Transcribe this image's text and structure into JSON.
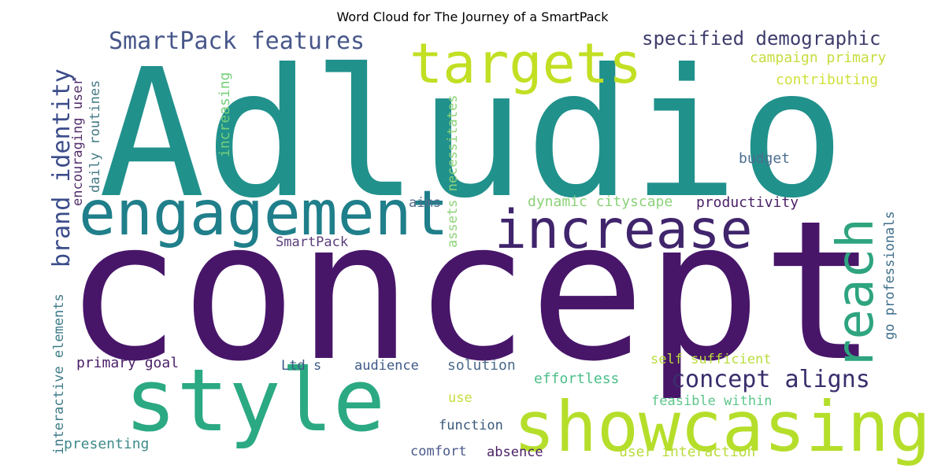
{
  "chart_data": {
    "type": "wordcloud",
    "title": "Word Cloud for The Journey of a SmartPack",
    "colormap": "viridis",
    "background": "#ffffff",
    "words": [
      {
        "text": "Adludio",
        "color": "#21918c"
      },
      {
        "text": "concept",
        "color": "#471669"
      },
      {
        "text": "style",
        "color": "#2ba982"
      },
      {
        "text": "showcasing",
        "color": "#b5de2b"
      },
      {
        "text": "engagement",
        "color": "#1f7f8a"
      },
      {
        "text": "increase",
        "color": "#40256c"
      },
      {
        "text": "targets",
        "color": "#c2df23"
      },
      {
        "text": "reach",
        "color": "#2ea47f"
      },
      {
        "text": "SmartPack features",
        "color": "#48578a"
      },
      {
        "text": "brand identity",
        "color": "#3b4c8a"
      },
      {
        "text": "concept aligns",
        "color": "#3a2e6c"
      },
      {
        "text": "specified demographic",
        "color": "#3e3d6c"
      },
      {
        "text": "campaign primary",
        "color": "#c8dc3c"
      },
      {
        "text": "contributing",
        "color": "#d0e03c"
      },
      {
        "text": "increasing",
        "color": "#74d07a"
      },
      {
        "text": "encouraging user",
        "color": "#542f6c"
      },
      {
        "text": "daily routines",
        "color": "#457a86"
      },
      {
        "text": "assets necessitates",
        "color": "#8dd27a"
      },
      {
        "text": "budget",
        "color": "#4b6e8f"
      },
      {
        "text": "dynamic cityscape",
        "color": "#8bd27a"
      },
      {
        "text": "productivity",
        "color": "#4a1f66"
      },
      {
        "text": "aims",
        "color": "#4f6c8c"
      },
      {
        "text": "SmartPack",
        "color": "#5a3e7a"
      },
      {
        "text": "go professionals",
        "color": "#3e6e8a"
      },
      {
        "text": "interactive elements",
        "color": "#3e7a88"
      },
      {
        "text": "primary goal",
        "color": "#4a1f66"
      },
      {
        "text": "Ltd s",
        "color": "#3e5a88"
      },
      {
        "text": "audience",
        "color": "#3e5a88"
      },
      {
        "text": "solution",
        "color": "#4a6a8a"
      },
      {
        "text": "self sufficient",
        "color": "#b9dc3c"
      },
      {
        "text": "effortless",
        "color": "#4bbf88"
      },
      {
        "text": "use",
        "color": "#c8dc3c"
      },
      {
        "text": "feasible within",
        "color": "#5cc78a"
      },
      {
        "text": "function",
        "color": "#3a5a7a"
      },
      {
        "text": "presenting",
        "color": "#3e8a8a"
      },
      {
        "text": "comfort",
        "color": "#4a5a8a"
      },
      {
        "text": "absence",
        "color": "#4a1f66"
      },
      {
        "text": "user interaction",
        "color": "#b9dc3c"
      }
    ]
  }
}
